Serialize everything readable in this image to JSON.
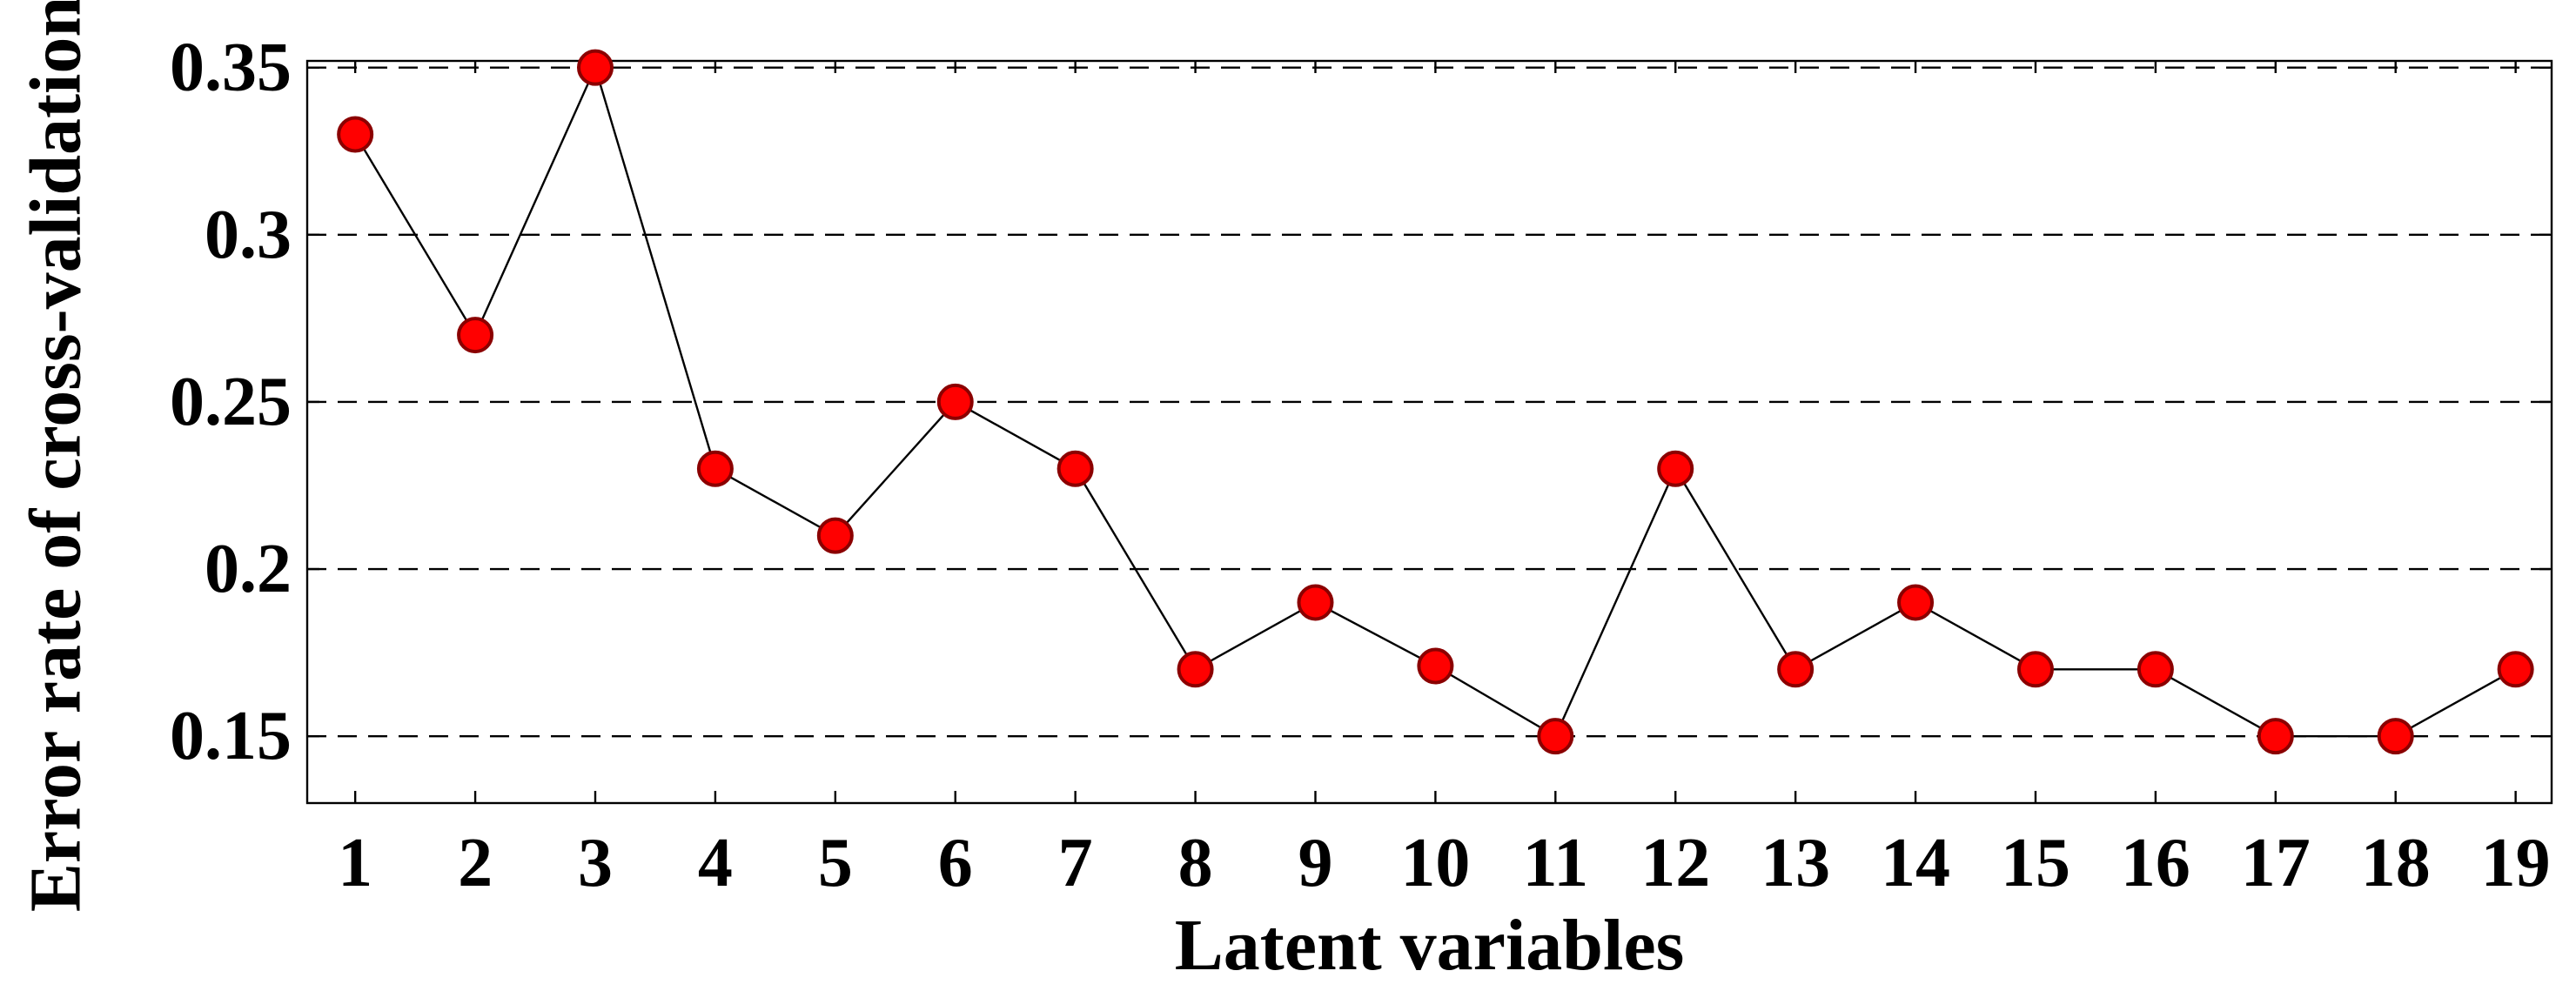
{
  "chart_data": {
    "type": "line",
    "title": "",
    "xlabel": "Latent variables",
    "ylabel": "Error rate of cross-validation",
    "x": [
      1,
      2,
      3,
      4,
      5,
      6,
      7,
      8,
      9,
      10,
      11,
      12,
      13,
      14,
      15,
      16,
      17,
      18,
      19
    ],
    "x_tick_labels": [
      "1",
      "2",
      "3",
      "4",
      "5",
      "6",
      "7",
      "8",
      "9",
      "10",
      "11",
      "12",
      "13",
      "14",
      "15",
      "16",
      "17",
      "18",
      "19"
    ],
    "y_tick_values": [
      0.15,
      0.2,
      0.25,
      0.3,
      0.35
    ],
    "y_tick_labels": [
      "0.15",
      "0.2",
      "0.25",
      "0.3",
      "0.35"
    ],
    "xlim": [
      0.6,
      19.3
    ],
    "ylim": [
      0.13,
      0.352
    ],
    "grid": "horizontal dashed",
    "legend": "none",
    "series": [
      {
        "values": [
          0.33,
          0.27,
          0.35,
          0.23,
          0.21,
          0.25,
          0.23,
          0.17,
          0.19,
          0.171,
          0.15,
          0.23,
          0.17,
          0.19,
          0.17,
          0.17,
          0.15,
          0.15,
          0.17
        ],
        "line_color": "#000000",
        "marker": "circle",
        "marker_color": "#ff0000",
        "marker_edge_color": "#8b0000"
      }
    ]
  }
}
